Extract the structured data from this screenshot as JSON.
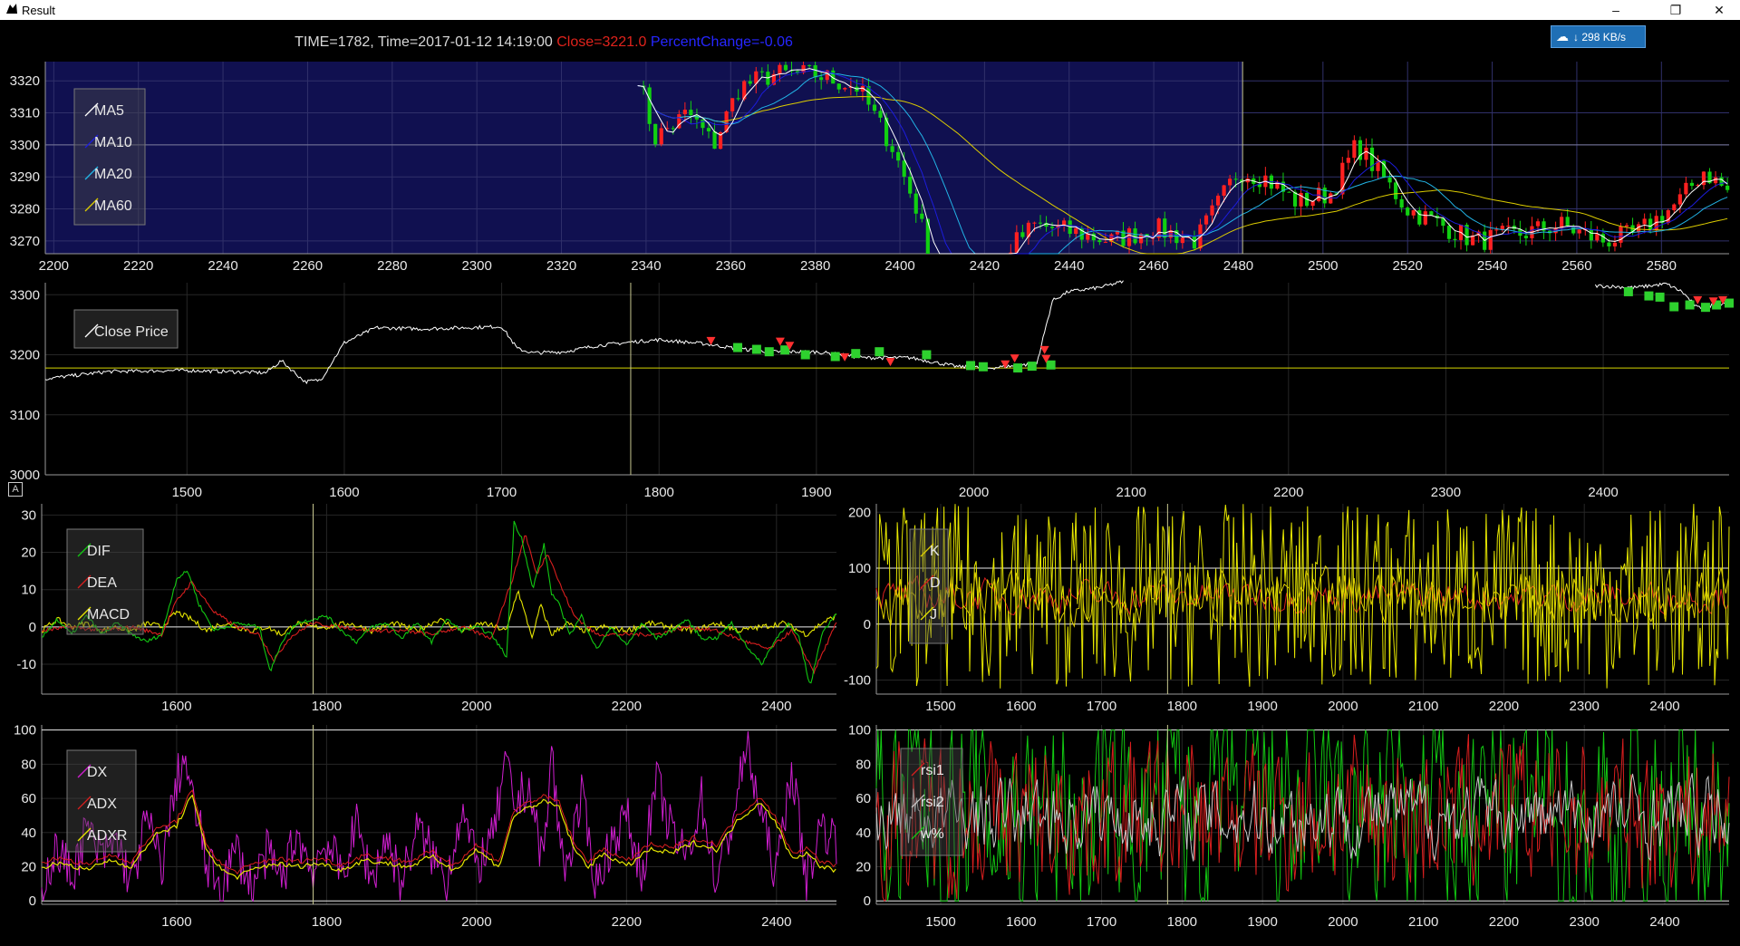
{
  "window": {
    "title": "Result"
  },
  "info": {
    "time_text": "TIME=1782, Time=2017-01-12 14:19:00",
    "close_text": "Close=3221.0",
    "pct_text": "PercentChange=-0.06"
  },
  "netbadge": {
    "text": "298 KB/s"
  },
  "chart_data": [
    {
      "id": "candle",
      "type": "line",
      "x_ticks": [
        2200,
        2220,
        2240,
        2260,
        2280,
        2300,
        2320,
        2340,
        2360,
        2380,
        2400,
        2420,
        2440,
        2460,
        2480,
        2500,
        2520,
        2540,
        2560,
        2580
      ],
      "y_ticks": [
        3270,
        3280,
        3290,
        3300,
        3310,
        3320
      ],
      "xlim": [
        2198,
        2596
      ],
      "ylim": [
        3266,
        3326
      ],
      "legend": [
        "MA5",
        "MA10",
        "MA20",
        "MA60"
      ],
      "colors": {
        "MA5": "#ffffff",
        "MA10": "#1c1cdc",
        "MA20": "#22b4e6",
        "MA60": "#dccc00"
      },
      "highlight_range": [
        2198,
        2481
      ],
      "cursor_x": 2481,
      "hline": 3300
    },
    {
      "id": "close",
      "type": "line",
      "x_ticks": [
        1500,
        1600,
        1700,
        1800,
        1900,
        2000,
        2100,
        2200,
        2300,
        2400
      ],
      "y_ticks": [
        3000,
        3100,
        3200,
        3300
      ],
      "xlim": [
        1410,
        2480
      ],
      "ylim": [
        3000,
        3320
      ],
      "legend": [
        "Close Price"
      ],
      "cursor_x": 1782,
      "hline": 3178,
      "series": {
        "name": "Close Price",
        "x": [
          1410,
          1450,
          1500,
          1550,
          1560,
          1575,
          1585,
          1600,
          1620,
          1650,
          1700,
          1710,
          1720,
          1740,
          1760,
          1782,
          1800,
          1830,
          1850,
          1870,
          1900,
          1930,
          1960,
          1990,
          2010,
          2040,
          2050,
          2060,
          2080,
          2095
        ],
        "values": [
          3160,
          3172,
          3174,
          3170,
          3190,
          3155,
          3158,
          3220,
          3245,
          3243,
          3247,
          3210,
          3203,
          3205,
          3215,
          3221,
          3225,
          3218,
          3210,
          3205,
          3205,
          3195,
          3195,
          3180,
          3178,
          3185,
          3290,
          3305,
          3312,
          3322
        ]
      },
      "series2": {
        "x": [
          2395,
          2420,
          2440,
          2450,
          2460,
          2480
        ],
        "values": [
          3315,
          3312,
          3318,
          3305,
          3278,
          3288
        ]
      },
      "signals_up": [
        [
          1833,
          3222
        ],
        [
          1883,
          3214
        ],
        [
          1918,
          3195
        ],
        [
          1947,
          3187
        ],
        [
          2020,
          3183
        ],
        [
          2046,
          3192
        ]
      ],
      "signals_buy": [
        [
          1850,
          3212
        ],
        [
          1862,
          3209
        ],
        [
          1870,
          3205
        ],
        [
          1880,
          3208
        ],
        [
          1893,
          3200
        ],
        [
          1912,
          3197
        ],
        [
          1925,
          3202
        ],
        [
          1940,
          3205
        ],
        [
          1970,
          3200
        ],
        [
          1998,
          3182
        ],
        [
          2006,
          3180
        ],
        [
          2028,
          3178
        ],
        [
          2037,
          3181
        ],
        [
          2049,
          3183
        ],
        [
          2416,
          3305
        ],
        [
          2429,
          3298
        ],
        [
          2436,
          3296
        ],
        [
          2445,
          3280
        ],
        [
          2455,
          3283
        ],
        [
          2465,
          3279
        ],
        [
          2472,
          3283
        ],
        [
          2480,
          3286
        ]
      ],
      "signals_sell": [
        [
          1877,
          3221
        ],
        [
          2026,
          3193
        ],
        [
          2045,
          3207
        ],
        [
          2460,
          3290
        ],
        [
          2470,
          3288
        ],
        [
          2476,
          3290
        ]
      ]
    },
    {
      "id": "macd",
      "type": "line",
      "x_ticks": [
        1600,
        1800,
        2000,
        2200,
        2400
      ],
      "y_ticks": [
        -10,
        0,
        10,
        20,
        30
      ],
      "xlim": [
        1420,
        2480
      ],
      "ylim": [
        -18,
        33
      ],
      "legend": [
        "DIF",
        "DEA",
        "MACD"
      ],
      "colors": {
        "DIF": "#12c812",
        "DEA": "#d81e1e",
        "MACD": "#e6e600"
      },
      "cursor_x": 1782,
      "series": [
        {
          "name": "DIF",
          "x": [
            1420,
            1440,
            1460,
            1480,
            1500,
            1520,
            1540,
            1560,
            1580,
            1600,
            1615,
            1630,
            1650,
            1680,
            1710,
            1725,
            1740,
            1760,
            1780,
            1800,
            1820,
            1840,
            1860,
            1880,
            1900,
            1920,
            1940,
            1960,
            1980,
            2000,
            2020,
            2040,
            2050,
            2060,
            2075,
            2090,
            2100,
            2110,
            2125,
            2140,
            2160,
            2180,
            2200,
            2220,
            2240,
            2260,
            2280,
            2300,
            2320,
            2340,
            2360,
            2380,
            2400,
            2415,
            2430,
            2445,
            2460,
            2480
          ],
          "values": [
            -3,
            2,
            -2,
            3,
            -2,
            1,
            -2,
            -4,
            -2,
            13,
            15,
            6,
            -1,
            1,
            0,
            -12,
            -4,
            1,
            2,
            3,
            -1,
            -4,
            0,
            1,
            -3,
            1,
            -4,
            2,
            -1,
            0,
            -2,
            -8,
            28,
            24,
            10,
            22,
            9,
            6,
            -2,
            3,
            -6,
            0,
            -5,
            1,
            -3,
            -1,
            2,
            -3,
            -3,
            1,
            -5,
            -10,
            -3,
            1,
            -3,
            -16,
            -2,
            4
          ]
        },
        {
          "name": "DEA",
          "x": [
            1420,
            1460,
            1500,
            1540,
            1580,
            1600,
            1620,
            1650,
            1680,
            1710,
            1730,
            1750,
            1780,
            1820,
            1860,
            1900,
            1940,
            1980,
            2020,
            2050,
            2065,
            2080,
            2095,
            2110,
            2130,
            2160,
            2200,
            2240,
            2280,
            2320,
            2360,
            2390,
            2420,
            2450,
            2480
          ],
          "values": [
            -1,
            0,
            -1,
            0,
            -2,
            7,
            12,
            4,
            0,
            -2,
            -9,
            -3,
            1,
            0,
            -1,
            -1,
            -2,
            0,
            -3,
            14,
            25,
            14,
            20,
            12,
            3,
            -2,
            -2,
            -2,
            0,
            -1,
            -4,
            -6,
            -1,
            -12,
            1
          ]
        },
        {
          "name": "MACD",
          "x": [
            1420,
            1440,
            1460,
            1480,
            1500,
            1520,
            1540,
            1560,
            1580,
            1600,
            1620,
            1640,
            1660,
            1680,
            1700,
            1720,
            1740,
            1760,
            1780,
            1800,
            1830,
            1860,
            1890,
            1920,
            1950,
            1980,
            2010,
            2040,
            2055,
            2065,
            2075,
            2085,
            2100,
            2120,
            2140,
            2170,
            2200,
            2230,
            2260,
            2290,
            2320,
            2350,
            2380,
            2410,
            2440,
            2460,
            2480
          ],
          "values": [
            -1,
            2,
            0,
            1,
            -1,
            0,
            -1,
            1,
            0,
            4,
            2,
            -1,
            1,
            0,
            -1,
            0,
            -2,
            1,
            0,
            0,
            1,
            -1,
            1,
            -1,
            2,
            -1,
            1,
            -1,
            10,
            3,
            -3,
            6,
            -2,
            1,
            -1,
            0,
            -1,
            1,
            0,
            -1,
            1,
            -1,
            0,
            1,
            -2,
            1,
            3
          ]
        }
      ]
    },
    {
      "id": "kdj",
      "type": "line",
      "x_ticks": [
        1500,
        1600,
        1700,
        1800,
        1900,
        2000,
        2100,
        2200,
        2300,
        2400
      ],
      "y_ticks": [
        -100,
        0,
        100,
        200
      ],
      "xlim": [
        1420,
        2480
      ],
      "ylim": [
        -125,
        215
      ],
      "legend": [
        "K",
        "D",
        "J"
      ],
      "colors": {
        "K": "#dccc00",
        "D": "#d81e1e",
        "J": "#e6e600"
      },
      "cursor_x": 1782,
      "hlines": [
        0,
        100
      ]
    },
    {
      "id": "dmi",
      "type": "line",
      "x_ticks": [
        1600,
        1800,
        2000,
        2200,
        2400
      ],
      "y_ticks": [
        0,
        20,
        40,
        60,
        80,
        100
      ],
      "xlim": [
        1420,
        2480
      ],
      "ylim": [
        -2,
        103
      ],
      "legend": [
        "DX",
        "ADX",
        "ADXR"
      ],
      "colors": {
        "DX": "#d01ed0",
        "ADX": "#d81e1e",
        "ADXR": "#e6e600"
      },
      "cursor_x": 1782,
      "hlines": [
        0,
        100
      ],
      "series": [
        {
          "name": "ADXR",
          "x": [
            1420,
            1450,
            1480,
            1510,
            1540,
            1570,
            1600,
            1620,
            1640,
            1660,
            1680,
            1700,
            1730,
            1760,
            1790,
            1820,
            1850,
            1880,
            1910,
            1940,
            1970,
            2000,
            2030,
            2050,
            2070,
            2090,
            2110,
            2130,
            2150,
            2170,
            2200,
            2230,
            2260,
            2290,
            2320,
            2350,
            2380,
            2400,
            2420,
            2440,
            2460,
            2480
          ],
          "values": [
            20,
            22,
            18,
            24,
            20,
            38,
            44,
            62,
            30,
            18,
            14,
            18,
            22,
            20,
            22,
            18,
            24,
            22,
            20,
            26,
            18,
            30,
            20,
            50,
            55,
            58,
            55,
            30,
            20,
            28,
            20,
            30,
            28,
            34,
            30,
            48,
            58,
            45,
            25,
            28,
            20,
            18
          ]
        },
        {
          "name": "DX",
          "x": [
            1420,
            1440,
            1460,
            1480,
            1500,
            1520,
            1540,
            1560,
            1580,
            1600,
            1610,
            1620,
            1630,
            1640,
            1660,
            1680,
            1700,
            1720,
            1740,
            1760,
            1780,
            1800,
            1820,
            1840,
            1860,
            1880,
            1900,
            1920,
            1940,
            1960,
            1980,
            2000,
            2020,
            2040,
            2050,
            2060,
            2070,
            2080,
            2090,
            2100,
            2110,
            2120,
            2140,
            2160,
            2180,
            2200,
            2220,
            2240,
            2260,
            2280,
            2300,
            2320,
            2340,
            2360,
            2380,
            2400,
            2420,
            2440,
            2460,
            2480
          ],
          "values": [
            10,
            30,
            15,
            42,
            25,
            35,
            10,
            48,
            20,
            70,
            85,
            60,
            45,
            20,
            10,
            30,
            8,
            28,
            12,
            40,
            18,
            35,
            15,
            45,
            12,
            38,
            10,
            42,
            28,
            12,
            55,
            20,
            35,
            80,
            55,
            62,
            68,
            40,
            25,
            88,
            38,
            20,
            60,
            10,
            35,
            50,
            15,
            70,
            40,
            25,
            60,
            10,
            45,
            90,
            50,
            15,
            80,
            12,
            45,
            35
          ]
        }
      ]
    },
    {
      "id": "rsi",
      "type": "line",
      "x_ticks": [
        1500,
        1600,
        1700,
        1800,
        1900,
        2000,
        2100,
        2200,
        2300,
        2400
      ],
      "y_ticks": [
        0,
        20,
        40,
        60,
        80,
        100
      ],
      "xlim": [
        1420,
        2480
      ],
      "ylim": [
        -2,
        103
      ],
      "legend": [
        "rsi1",
        "rsi2",
        "w%"
      ],
      "colors": {
        "rsi1": "#d81e1e",
        "rsi2": "#c8c8c8",
        "w%": "#12c812"
      },
      "cursor_x": 1782,
      "hlines": [
        0,
        100
      ]
    }
  ]
}
